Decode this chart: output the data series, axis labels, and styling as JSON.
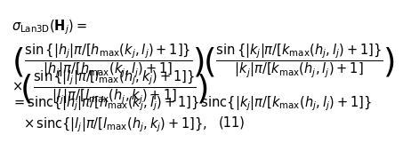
{
  "equation_lines": [
    "\\sigma_{\\mathrm{Lan3D}}\\left(\\mathbf{H}_j\\right) =",
    "\\left(\\frac{\\sin\\{|h_j|\\pi/[h_{\\max}(k_j,l_j)+1]\\}}{|h_j|\\pi/[h_{\\max}(k_j,l_j)+1]}\\right)\\left(\\frac{\\sin\\{|k_j|\\pi/[k_{\\max}(h_j,l_j)+1]\\}}{|k_j|\\pi/[k_{\\max}(h_j,l_j)+1]}\\right)",
    "\\times\\left(\\frac{\\sin\\{|l_j|\\pi/[l_{\\max}(h_j,k_j)+1]\\}}{|l_j|\\pi/[l_{\\max}(h_j,k_j)+1]}\\right)",
    "= \\mathrm{sinc}\\{|h_j|\\pi/[h_{\\max}(k_j,l_j)+1]\\}\\,\\mathrm{sinc}\\{|k_j|\\pi/[k_{\\max}(h_j,l_j)+1]\\}",
    "\\times\\,\\mathrm{sinc}\\{|l_j|\\pi/[l_{\\max}(h_j,k_j)+1]\\},"
  ],
  "equation_number": "(11)",
  "text_color": "#000000",
  "background_color": "#ffffff",
  "font_size": 10.5
}
